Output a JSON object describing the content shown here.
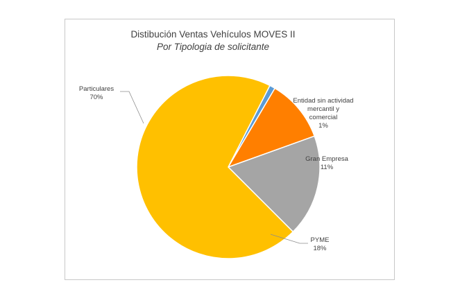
{
  "chart_data": {
    "type": "pie",
    "title": "Distibución Ventas Vehículos MOVES II",
    "subtitle": "Por Tipologia  de solicitante",
    "slices": [
      {
        "label_lines": [
          "Entidad sin actividad",
          "mercantil y",
          "comercial"
        ],
        "percent_label": "1%",
        "value": 1,
        "color": "#5b9bd5"
      },
      {
        "label_lines": [
          "Gran Empresa"
        ],
        "percent_label": "11%",
        "value": 11,
        "color": "#ff7f00"
      },
      {
        "label_lines": [
          "PYME"
        ],
        "percent_label": "18%",
        "value": 18,
        "color": "#a5a5a5"
      },
      {
        "label_lines": [
          "Particulares"
        ],
        "percent_label": "70%",
        "value": 70,
        "color": "#ffc000"
      }
    ],
    "start_angle_deg": 63,
    "direction": "clockwise",
    "legend": "none"
  }
}
